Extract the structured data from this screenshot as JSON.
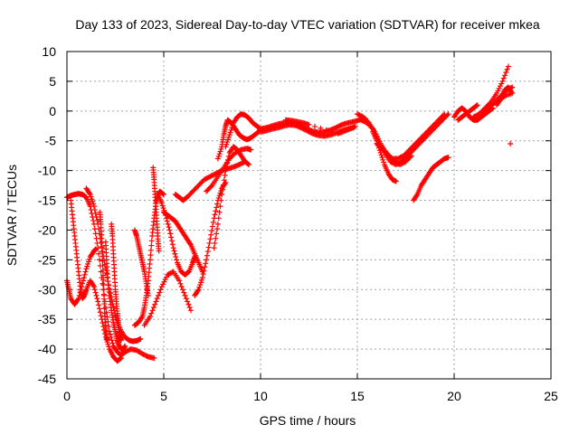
{
  "chart_data": {
    "type": "scatter",
    "title": "Day 133 of 2023, Sidereal Day-to-day VTEC variation (SDTVAR) for receiver mkea",
    "xlabel": "GPS time / hours",
    "ylabel": "SDTVAR / TECUs",
    "xlim": [
      0,
      25
    ],
    "ylim": [
      -45,
      10
    ],
    "xticks": [
      0,
      5,
      10,
      15,
      20,
      25
    ],
    "yticks": [
      -45,
      -40,
      -35,
      -30,
      -25,
      -20,
      -15,
      -10,
      -5,
      0,
      5,
      10
    ],
    "grid": true,
    "marker": "plus",
    "color": "#ff0000",
    "series": [
      {
        "x": [
          0.0,
          0.2,
          0.4,
          0.6,
          0.8,
          1.0,
          1.2,
          1.4,
          1.6,
          1.8,
          2.0,
          2.2,
          2.4,
          2.6,
          2.8,
          3.0,
          3.3,
          3.6,
          3.9,
          4.2,
          4.5
        ],
        "y": [
          -14.5,
          -14.2,
          -14.0,
          -13.9,
          -14.0,
          -14.5,
          -16.0,
          -19.0,
          -23.0,
          -28.0,
          -33.0,
          -37.0,
          -39.5,
          -40.5,
          -41.0,
          -40.5,
          -40.0,
          -40.2,
          -40.8,
          -41.3,
          -41.5
        ]
      },
      {
        "x": [
          0.2,
          0.3,
          0.4,
          0.5,
          0.6,
          0.7,
          0.8,
          0.9,
          1.0,
          1.2,
          1.4,
          1.6,
          1.8,
          2.0,
          2.2,
          2.4,
          2.6,
          2.8
        ],
        "y": [
          -15.0,
          -18.0,
          -21.0,
          -24.0,
          -27.0,
          -30.0,
          -31.5,
          -31.0,
          -30.0,
          -28.5,
          -29.5,
          -32.0,
          -35.0,
          -38.0,
          -40.0,
          -41.3,
          -42.0,
          -41.5
        ]
      },
      {
        "x": [
          0.0,
          0.1,
          0.2,
          0.4,
          0.6,
          0.8,
          1.0,
          1.2,
          1.4,
          1.5
        ],
        "y": [
          -28.5,
          -30.0,
          -31.5,
          -32.5,
          -31.5,
          -29.0,
          -26.5,
          -24.5,
          -23.5,
          -23.2
        ]
      },
      {
        "x": [
          1.0,
          1.2,
          1.4,
          1.6,
          1.8,
          2.0,
          2.2,
          2.4,
          2.6,
          2.8,
          3.0,
          3.2,
          3.4,
          3.6,
          3.8
        ],
        "y": [
          -13.0,
          -14.0,
          -16.0,
          -19.0,
          -23.0,
          -26.5,
          -30.0,
          -33.0,
          -35.5,
          -37.0,
          -38.0,
          -38.5,
          -38.7,
          -38.6,
          -38.3
        ]
      },
      {
        "x": [
          1.7,
          1.75,
          1.8,
          1.85,
          1.9,
          1.95,
          2.0,
          2.05,
          2.1
        ],
        "y": [
          -17.0,
          -19.0,
          -22.0,
          -26.0,
          -30.0,
          -34.0,
          -36.5,
          -38.0,
          -38.5
        ]
      },
      {
        "x": [
          2.0,
          2.05,
          2.1,
          2.2,
          2.3,
          2.4,
          2.5,
          2.6,
          2.7,
          2.8,
          2.9,
          3.0
        ],
        "y": [
          -22.0,
          -25.0,
          -28.0,
          -31.0,
          -33.5,
          -35.5,
          -37.0,
          -38.5,
          -39.5,
          -40.0,
          -40.0,
          -39.5
        ]
      },
      {
        "x": [
          2.3,
          2.35,
          2.4,
          2.45,
          2.5,
          2.55,
          2.6,
          2.65,
          2.7,
          2.75,
          2.8
        ],
        "y": [
          -19.0,
          -21.0,
          -24.0,
          -27.0,
          -30.0,
          -32.0,
          -34.0,
          -35.5,
          -37.0,
          -38.0,
          -38.5
        ]
      },
      {
        "x": [
          3.5,
          3.7,
          3.9,
          4.0,
          4.1,
          4.2,
          4.3,
          4.4,
          4.5,
          4.6,
          4.7,
          4.8,
          5.0
        ],
        "y": [
          -36.0,
          -35.5,
          -34.5,
          -33.0,
          -31.0,
          -28.5,
          -25.0,
          -21.0,
          -18.0,
          -15.5,
          -14.0,
          -13.5,
          -14.0
        ]
      },
      {
        "x": [
          3.5,
          3.6,
          3.7,
          3.8,
          3.9,
          4.0,
          4.1,
          4.2
        ],
        "y": [
          -20.0,
          -21.0,
          -22.5,
          -24.0,
          -25.5,
          -27.0,
          -29.0,
          -31.0
        ]
      },
      {
        "x": [
          4.45,
          4.5,
          4.55,
          4.6,
          4.65,
          4.7,
          4.75
        ],
        "y": [
          -9.5,
          -11.5,
          -14.0,
          -16.5,
          -19.0,
          -21.5,
          -23.5
        ]
      },
      {
        "x": [
          4.0,
          4.3,
          4.6,
          4.9,
          5.2,
          5.5,
          5.8,
          6.1,
          6.4
        ],
        "y": [
          -36.0,
          -34.5,
          -32.0,
          -29.5,
          -27.5,
          -27.0,
          -28.5,
          -31.0,
          -33.5
        ]
      },
      {
        "x": [
          4.7,
          4.9,
          5.1,
          5.3,
          5.5,
          5.7,
          5.9,
          6.1,
          6.3,
          6.5,
          6.6
        ],
        "y": [
          -14.0,
          -15.5,
          -17.5,
          -20.0,
          -23.0,
          -25.5,
          -27.0,
          -27.5,
          -27.0,
          -25.5,
          -24.5
        ]
      },
      {
        "x": [
          5.0,
          5.2,
          5.4,
          5.6,
          5.8,
          6.0,
          6.2,
          6.4,
          6.6,
          6.8,
          7.0
        ],
        "y": [
          -17.0,
          -17.5,
          -18.0,
          -18.5,
          -19.5,
          -20.5,
          -21.5,
          -22.5,
          -24.0,
          -25.5,
          -27.0
        ]
      },
      {
        "x": [
          5.6,
          5.8,
          6.0,
          6.2,
          6.5,
          6.8,
          7.1,
          7.4,
          7.7,
          8.0,
          8.3,
          8.6,
          8.9,
          9.2
        ],
        "y": [
          -14.0,
          -14.5,
          -15.0,
          -14.5,
          -13.5,
          -12.5,
          -11.5,
          -11.0,
          -10.5,
          -10.0,
          -9.7,
          -9.4,
          -9.0,
          -8.5
        ]
      },
      {
        "x": [
          6.6,
          6.8,
          7.0,
          7.2,
          7.4,
          7.6,
          7.8,
          8.0,
          8.2
        ],
        "y": [
          -31.0,
          -30.0,
          -28.0,
          -25.0,
          -21.5,
          -18.0,
          -15.0,
          -13.0,
          -12.0
        ]
      },
      {
        "x": [
          7.6,
          7.8,
          8.0,
          8.2,
          8.4,
          8.6,
          8.8,
          9.0,
          9.2,
          9.4
        ],
        "y": [
          -23.0,
          -19.0,
          -14.0,
          -10.0,
          -7.0,
          -6.0,
          -6.5,
          -7.5,
          -8.5,
          -9.0
        ]
      },
      {
        "x": [
          7.2,
          7.5,
          7.8,
          8.1,
          8.4,
          8.7,
          9.0,
          9.3,
          9.5
        ],
        "y": [
          -13.5,
          -12.5,
          -11.0,
          -9.5,
          -8.0,
          -7.0,
          -6.5,
          -6.3,
          -6.5
        ]
      },
      {
        "x": [
          7.8,
          8.0,
          8.1,
          8.2,
          8.3,
          8.5,
          8.7,
          8.9,
          9.1,
          9.3,
          9.5,
          9.7,
          9.9,
          10.0
        ],
        "y": [
          -8.0,
          -6.0,
          -4.0,
          -2.5,
          -1.5,
          -2.0,
          -3.0,
          -4.0,
          -4.5,
          -4.8,
          -4.5,
          -4.0,
          -3.5,
          -3.0
        ]
      },
      {
        "x": [
          8.2,
          8.4,
          8.6,
          8.8,
          9.0,
          9.2,
          9.4,
          9.6,
          9.8,
          10.0
        ],
        "y": [
          -6.0,
          -4.0,
          -2.0,
          -1.0,
          -0.5,
          -0.7,
          -1.2,
          -2.0,
          -2.5,
          -3.0
        ]
      },
      {
        "x": [
          10.0,
          10.3,
          10.6,
          10.9,
          11.2,
          11.5,
          11.8,
          12.1,
          12.4,
          12.7,
          13.0,
          13.3,
          13.6,
          13.9,
          14.2,
          14.5,
          14.8,
          15.1,
          15.4
        ],
        "y": [
          -3.0,
          -2.8,
          -2.5,
          -2.2,
          -2.0,
          -2.0,
          -2.2,
          -2.6,
          -3.0,
          -3.4,
          -3.6,
          -3.5,
          -3.2,
          -2.8,
          -2.3,
          -2.0,
          -1.8,
          -1.5,
          -1.2
        ]
      },
      {
        "x": [
          10.0,
          10.3,
          10.6,
          10.9,
          11.2,
          11.5,
          11.8,
          12.1,
          12.4,
          12.7,
          13.0,
          13.3,
          13.6,
          13.9,
          14.2,
          14.5,
          14.8
        ],
        "y": [
          -3.5,
          -3.3,
          -3.0,
          -2.8,
          -2.5,
          -2.3,
          -2.4,
          -2.8,
          -3.3,
          -3.8,
          -4.1,
          -4.2,
          -4.0,
          -3.7,
          -3.3,
          -3.0,
          -2.8
        ]
      },
      {
        "x": [
          11.3,
          11.6,
          11.9,
          12.2,
          12.5,
          14.0,
          14.3,
          14.6,
          14.9
        ],
        "y": [
          -1.5,
          -1.6,
          -1.8,
          -2.0,
          -2.3,
          -3.8,
          -3.4,
          -3.0,
          -2.6
        ]
      },
      {
        "x": [
          15.0,
          15.3,
          15.6,
          15.9,
          16.2,
          16.5,
          16.8,
          17.1,
          17.4,
          17.7,
          18.0,
          18.3,
          18.6,
          18.9,
          19.2,
          19.5
        ],
        "y": [
          -0.5,
          -1.0,
          -2.0,
          -3.5,
          -5.5,
          -7.0,
          -8.0,
          -8.0,
          -7.5,
          -6.5,
          -5.5,
          -4.5,
          -3.5,
          -2.5,
          -1.5,
          -0.5
        ]
      },
      {
        "x": [
          15.2,
          15.5,
          15.8,
          16.1,
          16.4,
          16.7,
          17.0,
          17.3,
          17.6,
          17.9,
          18.2,
          18.5,
          18.8,
          19.1,
          19.4,
          19.7
        ],
        "y": [
          -1.5,
          -2.0,
          -3.0,
          -5.0,
          -7.0,
          -8.5,
          -9.0,
          -8.5,
          -7.5,
          -6.5,
          -5.5,
          -4.5,
          -3.5,
          -2.5,
          -1.5,
          -0.5
        ]
      },
      {
        "x": [
          15.8,
          16.0,
          16.2,
          16.4,
          16.6,
          16.8,
          17.0
        ],
        "y": [
          -3.5,
          -5.0,
          -7.0,
          -9.0,
          -10.5,
          -11.5,
          -11.8
        ]
      },
      {
        "x": [
          16.0,
          16.3,
          16.6,
          16.9,
          17.2,
          17.5,
          17.8
        ],
        "y": [
          -5.5,
          -6.5,
          -7.5,
          -8.5,
          -9.0,
          -8.5,
          -7.5
        ]
      },
      {
        "x": [
          17.9,
          18.1,
          18.3,
          18.5,
          18.7,
          18.9,
          19.1,
          19.3,
          19.5,
          19.7
        ],
        "y": [
          -15.0,
          -14.0,
          -12.5,
          -11.5,
          -10.5,
          -9.5,
          -9.0,
          -8.5,
          -8.0,
          -7.8
        ]
      },
      {
        "x": [
          20.0,
          20.2,
          20.4,
          20.6,
          20.8,
          21.0,
          21.2,
          21.4,
          21.6,
          21.8,
          22.0
        ],
        "y": [
          -1.0,
          0.0,
          0.5,
          0.0,
          -1.0,
          -1.5,
          -1.5,
          -1.0,
          -0.5,
          0.0,
          0.5
        ]
      },
      {
        "x": [
          20.2,
          20.4,
          20.6,
          20.8,
          21.0,
          21.2
        ],
        "y": [
          -1.5,
          -1.0,
          -0.5,
          0.0,
          0.5,
          1.0
        ]
      },
      {
        "x": [
          21.0,
          21.3,
          21.6,
          21.9,
          22.2,
          22.5,
          22.8
        ],
        "y": [
          -1.0,
          -0.5,
          0.5,
          1.5,
          3.0,
          5.0,
          7.5
        ]
      },
      {
        "x": [
          21.5,
          21.8,
          22.1,
          22.4,
          22.7,
          23.0
        ],
        "y": [
          -0.5,
          0.5,
          1.5,
          2.5,
          3.5,
          4.0
        ]
      },
      {
        "x": [
          22.2,
          22.4,
          22.6,
          22.8,
          23.0,
          22.6,
          22.4
        ],
        "y": [
          1.0,
          2.0,
          3.5,
          4.0,
          3.0,
          2.5,
          2.0
        ]
      },
      {
        "x": [
          22.9
        ],
        "y": [
          -5.5
        ]
      }
    ]
  }
}
